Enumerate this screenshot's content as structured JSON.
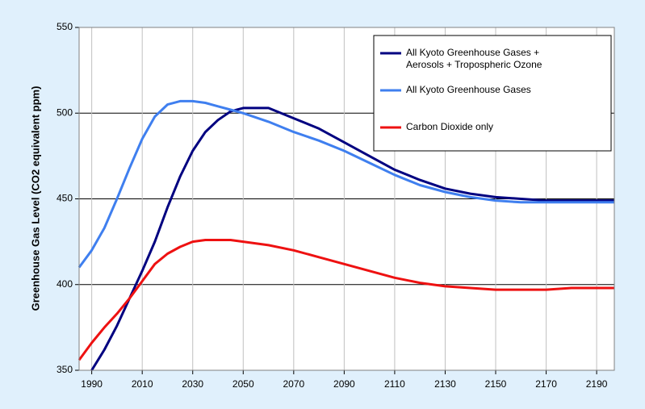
{
  "chart_data": {
    "type": "line",
    "ylabel": "Greenhouse Gas Level (CO2 equivalent ppm)",
    "x": [
      1985,
      1990,
      1995,
      2000,
      2005,
      2010,
      2015,
      2020,
      2025,
      2030,
      2035,
      2040,
      2045,
      2050,
      2060,
      2070,
      2080,
      2090,
      2100,
      2110,
      2120,
      2130,
      2140,
      2150,
      2160,
      2170,
      2180,
      2190,
      2197
    ],
    "xlim": [
      1985,
      2197
    ],
    "xticks": [
      1990,
      2010,
      2030,
      2050,
      2070,
      2090,
      2110,
      2130,
      2150,
      2170,
      2190
    ],
    "ylim": [
      350,
      550
    ],
    "yticks": [
      350,
      400,
      450,
      500,
      550
    ],
    "grid": true,
    "legend": "top-right",
    "series": [
      {
        "name": "All Kyoto Greenhouse Gases + Aerosols + Tropospheric Ozone",
        "color": "#000080",
        "values": [
          null,
          350,
          362,
          376,
          392,
          408,
          425,
          445,
          463,
          478,
          489,
          496,
          501,
          503,
          503,
          497,
          491,
          483,
          475,
          467,
          461,
          456,
          453,
          451,
          450,
          449,
          449,
          449,
          449
        ]
      },
      {
        "name": "All Kyoto Greenhouse Gases",
        "color": "#3f7fef",
        "values": [
          410,
          420,
          433,
          450,
          468,
          485,
          498,
          505,
          507,
          507,
          506,
          504,
          502,
          500,
          495,
          489,
          484,
          478,
          471,
          464,
          458,
          454,
          451,
          449,
          448,
          448,
          448,
          448,
          448
        ]
      },
      {
        "name": "Carbon Dioxide only",
        "color": "#ee1111",
        "values": [
          356,
          366,
          375,
          383,
          392,
          402,
          412,
          418,
          422,
          425,
          426,
          426,
          426,
          425,
          423,
          420,
          416,
          412,
          408,
          404,
          401,
          399,
          398,
          397,
          397,
          397,
          398,
          398,
          398
        ]
      }
    ]
  }
}
